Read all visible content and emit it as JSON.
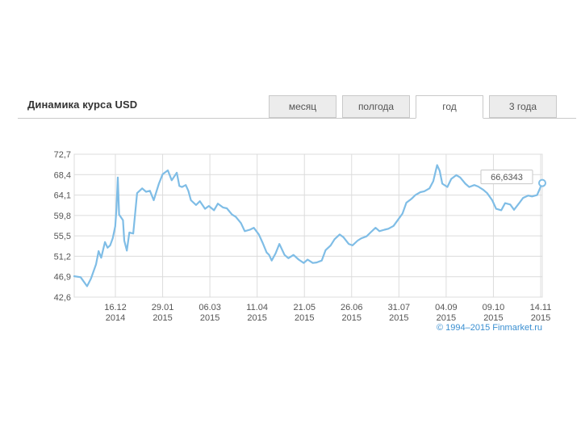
{
  "header": {
    "title": "Динамика курса USD"
  },
  "tabs": [
    {
      "label": "месяц",
      "active": false
    },
    {
      "label": "полгода",
      "active": false
    },
    {
      "label": "год",
      "active": true
    },
    {
      "label": "3 года",
      "active": false
    }
  ],
  "copyright": "© 1994–2015 Finmarket.ru",
  "colors": {
    "line": "#7fbde6",
    "grid": "#dcdcdc",
    "axis_text": "#555555",
    "tab_border": "#c9c9c9"
  },
  "chart_data": {
    "type": "line",
    "title": "",
    "xlabel": "",
    "ylabel": "",
    "ylim": [
      42.6,
      72.7
    ],
    "y_ticks": [
      "72,7",
      "68,4",
      "64,1",
      "59,8",
      "55,5",
      "51,2",
      "46,9",
      "42,6"
    ],
    "x_ticks": [
      {
        "day": "16.12",
        "year": "2014"
      },
      {
        "day": "29.01",
        "year": "2015"
      },
      {
        "day": "06.03",
        "year": "2015"
      },
      {
        "day": "11.04",
        "year": "2015"
      },
      {
        "day": "21.05",
        "year": "2015"
      },
      {
        "day": "26.06",
        "year": "2015"
      },
      {
        "day": "31.07",
        "year": "2015"
      },
      {
        "day": "04.09",
        "year": "2015"
      },
      {
        "day": "09.10",
        "year": "2015"
      },
      {
        "day": "14.11",
        "year": "2015"
      }
    ],
    "grid": true,
    "last_value_label": "66,6343",
    "series": [
      {
        "x": [
          "2014-11-14",
          "2014-11-19",
          "2014-11-24",
          "2014-11-27",
          "2014-12-01",
          "2014-12-03",
          "2014-12-05",
          "2014-12-08",
          "2014-12-10",
          "2014-12-12",
          "2014-12-14",
          "2014-12-16",
          "2014-12-17",
          "2014-12-18",
          "2014-12-19",
          "2014-12-22",
          "2014-12-23",
          "2014-12-25",
          "2014-12-27",
          "2014-12-30",
          "2015-01-02",
          "2015-01-06",
          "2015-01-09",
          "2015-01-12",
          "2015-01-15",
          "2015-01-19",
          "2015-01-22",
          "2015-01-26",
          "2015-01-29",
          "2015-02-02",
          "2015-02-04",
          "2015-02-06",
          "2015-02-09",
          "2015-02-11",
          "2015-02-13",
          "2015-02-17",
          "2015-02-20",
          "2015-02-24",
          "2015-02-27",
          "2015-03-03",
          "2015-03-06",
          "2015-03-10",
          "2015-03-13",
          "2015-03-17",
          "2015-03-20",
          "2015-03-24",
          "2015-03-27",
          "2015-03-31",
          "2015-04-03",
          "2015-04-07",
          "2015-04-10",
          "2015-04-13",
          "2015-04-15",
          "2015-04-17",
          "2015-04-20",
          "2015-04-23",
          "2015-04-27",
          "2015-04-30",
          "2015-05-04",
          "2015-05-08",
          "2015-05-12",
          "2015-05-15",
          "2015-05-19",
          "2015-05-22",
          "2015-05-26",
          "2015-05-29",
          "2015-06-02",
          "2015-06-05",
          "2015-06-09",
          "2015-06-12",
          "2015-06-16",
          "2015-06-19",
          "2015-06-23",
          "2015-06-26",
          "2015-06-30",
          "2015-07-03",
          "2015-07-07",
          "2015-07-10",
          "2015-07-14",
          "2015-07-17",
          "2015-07-21",
          "2015-07-24",
          "2015-07-28",
          "2015-07-31",
          "2015-08-04",
          "2015-08-07",
          "2015-08-11",
          "2015-08-14",
          "2015-08-18",
          "2015-08-21",
          "2015-08-24",
          "2015-08-26",
          "2015-08-28",
          "2015-09-01",
          "2015-09-04",
          "2015-09-08",
          "2015-09-11",
          "2015-09-15",
          "2015-09-18",
          "2015-09-22",
          "2015-09-25",
          "2015-09-29",
          "2015-10-02",
          "2015-10-06",
          "2015-10-09",
          "2015-10-13",
          "2015-10-16",
          "2015-10-20",
          "2015-10-23",
          "2015-10-27",
          "2015-10-30",
          "2015-11-03",
          "2015-11-06",
          "2015-11-10",
          "2015-11-14"
        ],
        "values": [
          47.0,
          46.8,
          44.9,
          46.5,
          49.5,
          52.3,
          50.9,
          54.2,
          53.0,
          53.5,
          55.0,
          57.5,
          61.5,
          67.8,
          60.0,
          58.8,
          54.5,
          52.4,
          56.2,
          56.0,
          64.5,
          65.5,
          64.8,
          65.0,
          63.0,
          66.5,
          68.5,
          69.3,
          67.2,
          68.8,
          66.0,
          65.8,
          66.2,
          65.0,
          63.0,
          62.0,
          62.8,
          61.2,
          61.8,
          60.9,
          62.3,
          61.5,
          61.3,
          60.0,
          59.5,
          58.2,
          56.5,
          56.8,
          57.2,
          55.8,
          54.0,
          52.0,
          51.5,
          50.3,
          51.8,
          53.8,
          51.5,
          50.8,
          51.5,
          50.5,
          49.8,
          50.5,
          49.8,
          49.9,
          50.3,
          52.5,
          53.5,
          54.8,
          55.8,
          55.2,
          53.8,
          53.5,
          54.5,
          55.0,
          55.4,
          56.2,
          57.2,
          56.5,
          56.8,
          57.0,
          57.6,
          58.7,
          60.2,
          62.5,
          63.3,
          64.1,
          64.7,
          64.9,
          65.5,
          67.0,
          70.4,
          69.2,
          66.5,
          65.8,
          67.5,
          68.3,
          67.8,
          66.5,
          65.8,
          66.2,
          65.9,
          65.2,
          64.5,
          63.0,
          61.2,
          60.9,
          62.4,
          62.1,
          61.0,
          62.4,
          63.5,
          64.0,
          63.8,
          64.1,
          66.6343
        ]
      }
    ]
  }
}
